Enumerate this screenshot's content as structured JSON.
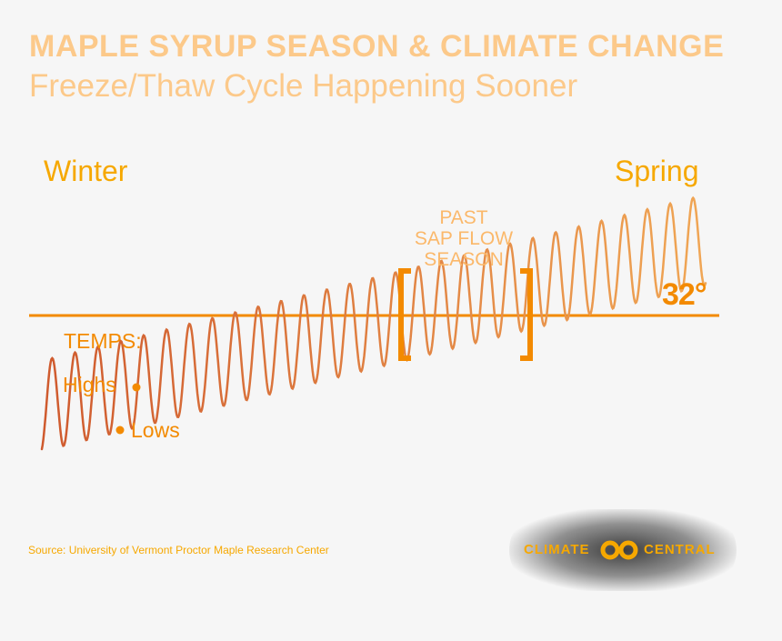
{
  "title": "MAPLE SYRUP SEASON & CLIMATE CHANGE",
  "subtitle": "Freeze/Thaw Cycle Happening Sooner",
  "labels": {
    "winter": "Winter",
    "spring": "Spring",
    "past_line1": "PAST",
    "past_line2": "SAP FLOW",
    "past_line3": "SEASON",
    "threshold": "32°",
    "temps": "TEMPS:",
    "highs": "Highs",
    "lows": "Lows"
  },
  "source": "Source: University of Vermont Proctor Maple Research Center",
  "logo": {
    "left_text": "CLIMATE",
    "right_text": "CENTRAL",
    "icon": "linked-rings-icon"
  },
  "colors": {
    "background": "#f6f6f6",
    "title": "#fcc98a",
    "accent": "#f38a00",
    "wave_start": "#cf5a2e",
    "wave_end": "#f0a655"
  },
  "chart_data": {
    "type": "line",
    "title": "",
    "xlabel": "",
    "ylabel": "",
    "x_start_label": "Winter",
    "x_end_label": "Spring",
    "threshold": {
      "label": "32°",
      "value": 32
    },
    "series": [
      {
        "name": "",
        "description_points": "daily high/low temperature oscillation trending upward",
        "cycles": 29,
        "midline_start": 20,
        "midline_end": 42,
        "amplitude": 6
      }
    ],
    "highlight_period": {
      "label": "PAST SAP FLOW SEASON",
      "start_fraction": 0.54,
      "end_fraction": 0.72
    }
  }
}
